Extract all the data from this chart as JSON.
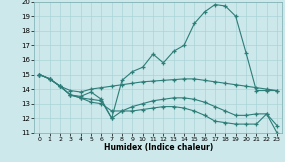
{
  "xlabel": "Humidex (Indice chaleur)",
  "ylabel": "",
  "bg_color": "#cce8eb",
  "grid_color": "#aad4d8",
  "line_color": "#2d7d78",
  "xlim": [
    -0.5,
    23.5
  ],
  "ylim": [
    11,
    20
  ],
  "xticks": [
    0,
    1,
    2,
    3,
    4,
    5,
    6,
    7,
    8,
    9,
    10,
    11,
    12,
    13,
    14,
    15,
    16,
    17,
    18,
    19,
    20,
    21,
    22,
    23
  ],
  "yticks": [
    11,
    12,
    13,
    14,
    15,
    16,
    17,
    18,
    19,
    20
  ],
  "line1_x": [
    0,
    1,
    2,
    3,
    4,
    5,
    6,
    7,
    8,
    9,
    10,
    11,
    12,
    13,
    14,
    15,
    16,
    17,
    18,
    19,
    20,
    21,
    22,
    23
  ],
  "line1_y": [
    15.0,
    14.7,
    14.2,
    13.6,
    13.5,
    13.8,
    13.3,
    12.0,
    14.6,
    15.2,
    15.5,
    16.4,
    15.8,
    16.6,
    17.0,
    18.5,
    19.3,
    19.8,
    19.7,
    19.0,
    16.5,
    13.9,
    13.9,
    13.9
  ],
  "line2_x": [
    0,
    1,
    2,
    3,
    4,
    5,
    6,
    7,
    8,
    9,
    10,
    11,
    12,
    13,
    14,
    15,
    16,
    17,
    18,
    19,
    20,
    21,
    22,
    23
  ],
  "line2_y": [
    15.0,
    14.7,
    14.2,
    13.9,
    13.8,
    14.0,
    14.1,
    14.2,
    14.3,
    14.4,
    14.5,
    14.55,
    14.6,
    14.65,
    14.7,
    14.7,
    14.6,
    14.5,
    14.4,
    14.3,
    14.2,
    14.1,
    14.0,
    13.9
  ],
  "line3_x": [
    0,
    1,
    2,
    3,
    4,
    5,
    6,
    7,
    8,
    9,
    10,
    11,
    12,
    13,
    14,
    15,
    16,
    17,
    18,
    19,
    20,
    21,
    22,
    23
  ],
  "line3_y": [
    15.0,
    14.7,
    14.2,
    13.6,
    13.4,
    13.3,
    13.2,
    12.0,
    12.5,
    12.8,
    13.0,
    13.2,
    13.3,
    13.4,
    13.4,
    13.3,
    13.1,
    12.8,
    12.5,
    12.2,
    12.2,
    12.3,
    12.3,
    11.5
  ],
  "line4_x": [
    0,
    1,
    2,
    3,
    4,
    5,
    6,
    7,
    8,
    9,
    10,
    11,
    12,
    13,
    14,
    15,
    16,
    17,
    18,
    19,
    20,
    21,
    22,
    23
  ],
  "line4_y": [
    15.0,
    14.7,
    14.2,
    13.6,
    13.4,
    13.1,
    13.0,
    12.5,
    12.5,
    12.5,
    12.6,
    12.7,
    12.8,
    12.8,
    12.7,
    12.5,
    12.2,
    11.8,
    11.7,
    11.6,
    11.6,
    11.6,
    12.3,
    11.0
  ]
}
